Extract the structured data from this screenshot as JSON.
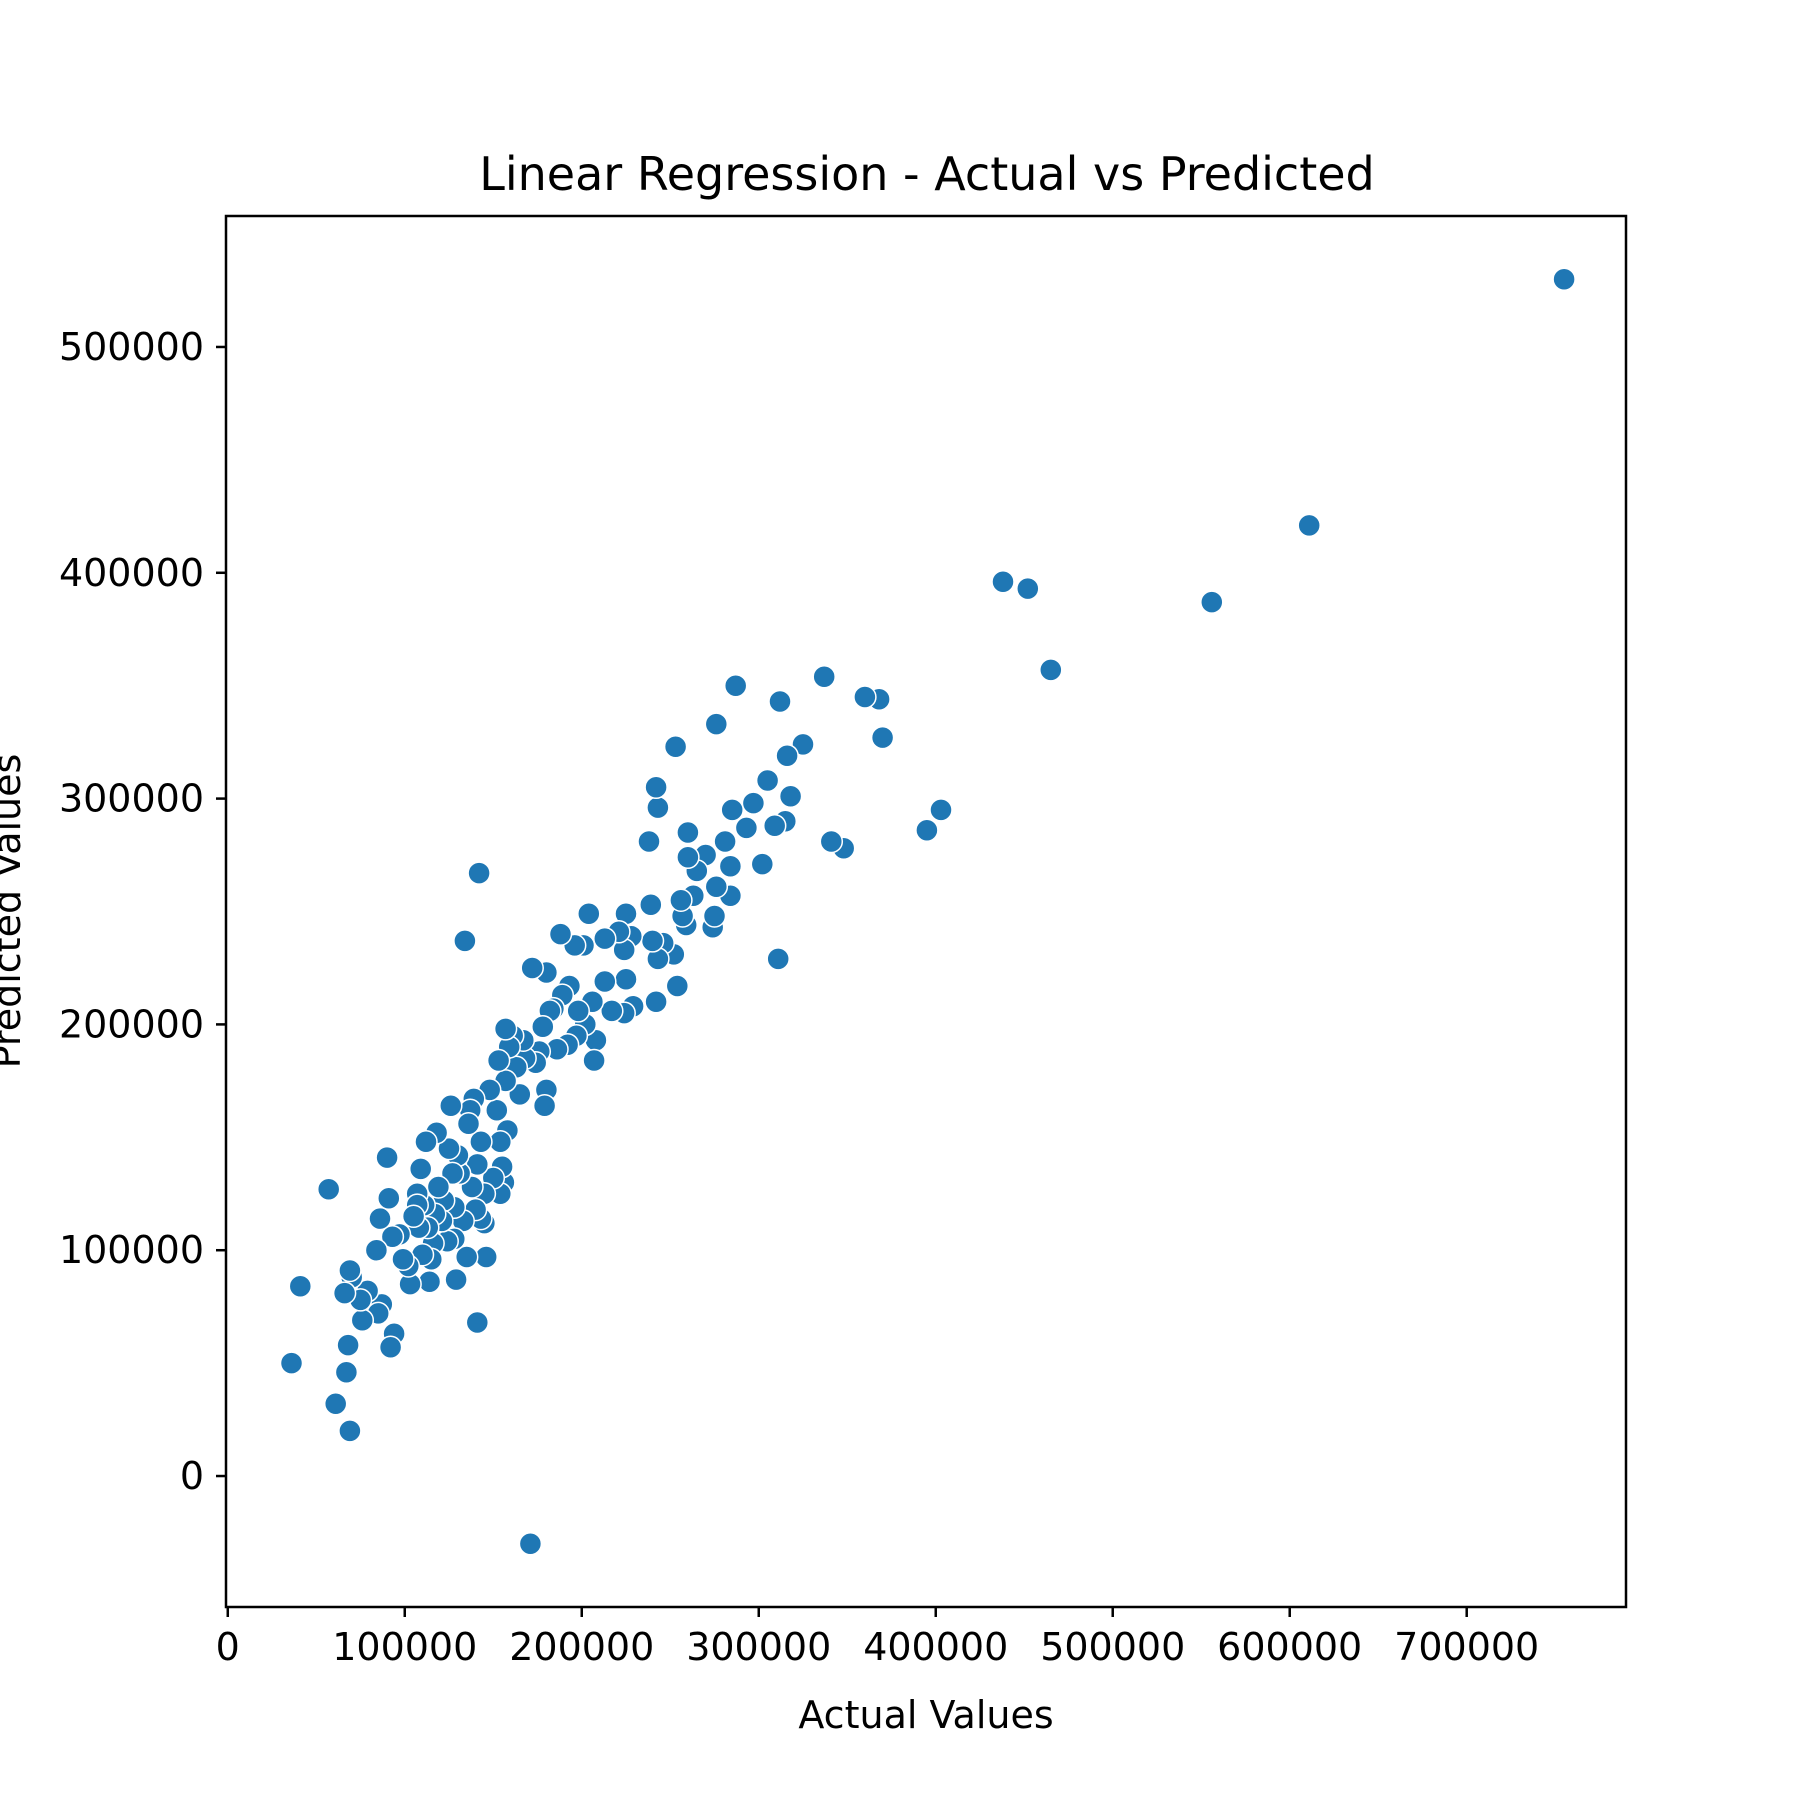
{
  "chart_data": {
    "type": "scatter",
    "title": "Linear Regression - Actual vs Predicted",
    "xlabel": "Actual Values",
    "ylabel": "Predicted Values",
    "xlim": [
      -1000,
      790000
    ],
    "ylim": [
      -58000,
      558000
    ],
    "xticks": [
      0,
      100000,
      200000,
      300000,
      400000,
      500000,
      600000,
      700000
    ],
    "yticks": [
      0,
      100000,
      200000,
      300000,
      400000,
      500000
    ],
    "xtick_labels": [
      "0",
      "100000",
      "200000",
      "300000",
      "400000",
      "500000",
      "600000",
      "700000"
    ],
    "ytick_labels": [
      "0",
      "100000",
      "200000",
      "300000",
      "400000",
      "500000"
    ],
    "grid": false,
    "legend": "none",
    "marker_color": "#1f77b4",
    "points": [
      [
        755000,
        530000
      ],
      [
        611000,
        421000
      ],
      [
        556000,
        387000
      ],
      [
        465000,
        357000
      ],
      [
        452000,
        393000
      ],
      [
        438000,
        396000
      ],
      [
        403000,
        295000
      ],
      [
        395000,
        286000
      ],
      [
        370000,
        327000
      ],
      [
        368000,
        344000
      ],
      [
        360000,
        345000
      ],
      [
        348000,
        278000
      ],
      [
        341000,
        281000
      ],
      [
        337000,
        354000
      ],
      [
        325000,
        324000
      ],
      [
        318000,
        301000
      ],
      [
        316000,
        319000
      ],
      [
        315000,
        290000
      ],
      [
        312000,
        343000
      ],
      [
        311000,
        229000
      ],
      [
        309000,
        288000
      ],
      [
        305000,
        308000
      ],
      [
        302000,
        271000
      ],
      [
        297000,
        298000
      ],
      [
        293000,
        287000
      ],
      [
        287000,
        350000
      ],
      [
        285000,
        295000
      ],
      [
        284000,
        270000
      ],
      [
        284000,
        257000
      ],
      [
        281000,
        281000
      ],
      [
        276000,
        333000
      ],
      [
        276000,
        261000
      ],
      [
        274000,
        243000
      ],
      [
        275000,
        248000
      ],
      [
        270000,
        275000
      ],
      [
        265000,
        268000
      ],
      [
        263000,
        257000
      ],
      [
        260000,
        285000
      ],
      [
        259000,
        244000
      ],
      [
        260000,
        274000
      ],
      [
        257000,
        248000
      ],
      [
        256000,
        255000
      ],
      [
        253000,
        323000
      ],
      [
        254000,
        217000
      ],
      [
        252000,
        231000
      ],
      [
        246000,
        236000
      ],
      [
        243000,
        296000
      ],
      [
        242000,
        305000
      ],
      [
        242000,
        210000
      ],
      [
        243000,
        229000
      ],
      [
        239000,
        253000
      ],
      [
        240000,
        237000
      ],
      [
        238000,
        281000
      ],
      [
        229000,
        208000
      ],
      [
        228000,
        239000
      ],
      [
        225000,
        249000
      ],
      [
        225000,
        220000
      ],
      [
        224000,
        233000
      ],
      [
        224000,
        205000
      ],
      [
        221000,
        241000
      ],
      [
        217000,
        206000
      ],
      [
        213000,
        219000
      ],
      [
        213000,
        238000
      ],
      [
        208000,
        193000
      ],
      [
        207000,
        184000
      ],
      [
        206000,
        210000
      ],
      [
        204000,
        249000
      ],
      [
        202000,
        200000
      ],
      [
        201000,
        235000
      ],
      [
        198000,
        206000
      ],
      [
        197000,
        195000
      ],
      [
        196000,
        235000
      ],
      [
        193000,
        217000
      ],
      [
        192000,
        191000
      ],
      [
        189000,
        213000
      ],
      [
        188000,
        240000
      ],
      [
        186000,
        189000
      ],
      [
        184000,
        207000
      ],
      [
        182000,
        206000
      ],
      [
        180000,
        223000
      ],
      [
        180000,
        171000
      ],
      [
        179000,
        164000
      ],
      [
        178000,
        199000
      ],
      [
        176000,
        188000
      ],
      [
        174000,
        183000
      ],
      [
        172000,
        225000
      ],
      [
        171000,
        -30000
      ],
      [
        168000,
        185000
      ],
      [
        165000,
        169000
      ],
      [
        167000,
        193000
      ],
      [
        163000,
        181000
      ],
      [
        161000,
        195000
      ],
      [
        159000,
        190000
      ],
      [
        158000,
        153000
      ],
      [
        157000,
        198000
      ],
      [
        157000,
        175000
      ],
      [
        156000,
        130000
      ],
      [
        155000,
        137000
      ],
      [
        154000,
        148000
      ],
      [
        154000,
        125000
      ],
      [
        153000,
        184000
      ],
      [
        152000,
        162000
      ],
      [
        150000,
        132000
      ],
      [
        148000,
        171000
      ],
      [
        146000,
        97000
      ],
      [
        145000,
        112000
      ],
      [
        145000,
        125000
      ],
      [
        143000,
        114000
      ],
      [
        143000,
        148000
      ],
      [
        142000,
        267000
      ],
      [
        141000,
        68000
      ],
      [
        141000,
        138000
      ],
      [
        140000,
        118000
      ],
      [
        139000,
        167000
      ],
      [
        138000,
        128000
      ],
      [
        137000,
        162000
      ],
      [
        136000,
        156000
      ],
      [
        135000,
        97000
      ],
      [
        134000,
        237000
      ],
      [
        133000,
        113000
      ],
      [
        131000,
        134000
      ],
      [
        130000,
        142000
      ],
      [
        129000,
        87000
      ],
      [
        128000,
        105000
      ],
      [
        128000,
        119000
      ],
      [
        127000,
        134000
      ],
      [
        126000,
        164000
      ],
      [
        125000,
        145000
      ],
      [
        124000,
        104000
      ],
      [
        122000,
        122000
      ],
      [
        121000,
        113000
      ],
      [
        119000,
        128000
      ],
      [
        118000,
        152000
      ],
      [
        117000,
        116000
      ],
      [
        116000,
        103000
      ],
      [
        115000,
        96000
      ],
      [
        114000,
        86000
      ],
      [
        113000,
        110000
      ],
      [
        112000,
        148000
      ],
      [
        111000,
        120000
      ],
      [
        110000,
        98000
      ],
      [
        109000,
        136000
      ],
      [
        108000,
        110000
      ],
      [
        107000,
        125000
      ],
      [
        107000,
        120000
      ],
      [
        105000,
        115000
      ],
      [
        103000,
        85000
      ],
      [
        102000,
        93000
      ],
      [
        99000,
        96000
      ],
      [
        97000,
        107000
      ],
      [
        94000,
        63000
      ],
      [
        93000,
        106000
      ],
      [
        92000,
        57000
      ],
      [
        91000,
        123000
      ],
      [
        90000,
        141000
      ],
      [
        87000,
        76000
      ],
      [
        86000,
        114000
      ],
      [
        85000,
        72000
      ],
      [
        84000,
        100000
      ],
      [
        79000,
        82000
      ],
      [
        76000,
        69000
      ],
      [
        75000,
        78000
      ],
      [
        70000,
        88000
      ],
      [
        69000,
        91000
      ],
      [
        69000,
        20000
      ],
      [
        68000,
        58000
      ],
      [
        67000,
        46000
      ],
      [
        66000,
        81000
      ],
      [
        61000,
        32000
      ],
      [
        57000,
        127000
      ],
      [
        41000,
        84000
      ],
      [
        36000,
        50000
      ]
    ]
  }
}
